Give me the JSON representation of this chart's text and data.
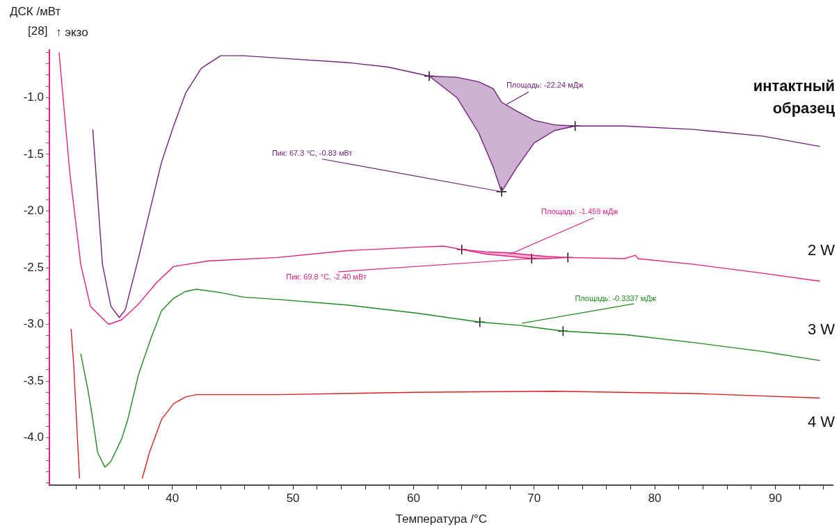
{
  "chart_data": {
    "type": "line",
    "ylabel": "ДСК /мВт",
    "xlabel": "Температура /°C",
    "annotations": [
      "[28]",
      "↑ экзо",
      {
        "text": "Площадь: -22.24 мДж",
        "x": 67.7,
        "y": -1.06
      },
      {
        "text": "Пик: 67.3 °C, -0.83 мВт",
        "x": 67.3,
        "y": -1.83
      },
      {
        "text": "Площадь: -1.459 мДж",
        "x": 68.0,
        "y": -2.38
      },
      {
        "text": "Пик: 69.8 °C, -2.40 мВт",
        "x": 69.8,
        "y": -2.42
      },
      {
        "text": "Площадь: -0.3337 мДж",
        "x": 69.0,
        "y": -2.99
      }
    ],
    "xlim": [
      29.8,
      94.8
    ],
    "ylim": [
      -4.42,
      -0.58
    ],
    "xticks": [
      {
        "value": 32,
        "label": null
      },
      {
        "value": 34,
        "label": null
      },
      {
        "value": 36,
        "label": null
      },
      {
        "value": 38,
        "label": null
      },
      40,
      {
        "value": 42,
        "label": null
      },
      {
        "value": 44,
        "label": null
      },
      {
        "value": 46,
        "label": null
      },
      {
        "value": 48,
        "label": null
      },
      50,
      {
        "value": 52,
        "label": null
      },
      {
        "value": 54,
        "label": null
      },
      {
        "value": 56,
        "label": null
      },
      {
        "value": 58,
        "label": null
      },
      60,
      {
        "value": 62,
        "label": null
      },
      {
        "value": 64,
        "label": null
      },
      {
        "value": 66,
        "label": null
      },
      {
        "value": 68,
        "label": null
      },
      70,
      {
        "value": 72,
        "label": null
      },
      {
        "value": 74,
        "label": null
      },
      {
        "value": 76,
        "label": null
      },
      {
        "value": 78,
        "label": null
      },
      80,
      {
        "value": 82,
        "label": null
      },
      {
        "value": 84,
        "label": null
      },
      {
        "value": 86,
        "label": null
      },
      {
        "value": 88,
        "label": null
      },
      90,
      {
        "value": 92,
        "label": null
      },
      {
        "value": 94,
        "label": null
      }
    ],
    "yticks": [
      {
        "value": -4.4,
        "label": null
      },
      {
        "value": -4.3,
        "label": null
      },
      {
        "value": -4.2,
        "label": null
      },
      {
        "value": -4.1,
        "label": null
      },
      {
        "value": -4,
        "label": "-4.0"
      },
      {
        "value": -3.9,
        "label": null
      },
      {
        "value": -3.8,
        "label": null
      },
      {
        "value": -3.7,
        "label": null
      },
      {
        "value": -3.6,
        "label": null
      },
      {
        "value": -3.5,
        "label": "-3.5"
      },
      {
        "value": -3.4,
        "label": null
      },
      {
        "value": -3.3,
        "label": null
      },
      {
        "value": -3.2,
        "label": null
      },
      {
        "value": -3.1,
        "label": null
      },
      {
        "value": -3,
        "label": "-3.0"
      },
      {
        "value": -2.9,
        "label": null
      },
      {
        "value": -2.8,
        "label": null
      },
      {
        "value": -2.7,
        "label": null
      },
      {
        "value": -2.6,
        "label": null
      },
      {
        "value": -2.5,
        "label": "-2.5"
      },
      {
        "value": -2.4,
        "label": null
      },
      {
        "value": -2.3,
        "label": null
      },
      {
        "value": -2.2,
        "label": null
      },
      {
        "value": -2.1,
        "label": null
      },
      {
        "value": -2,
        "label": "-2.0"
      },
      {
        "value": -1.9,
        "label": null
      },
      {
        "value": -1.8,
        "label": null
      },
      {
        "value": -1.7,
        "label": null
      },
      {
        "value": -1.6,
        "label": null
      },
      {
        "value": -1.5,
        "label": "-1.5"
      },
      {
        "value": -1.4,
        "label": null
      },
      {
        "value": -1.3,
        "label": null
      },
      {
        "value": -1.2,
        "label": null
      },
      {
        "value": -1.1,
        "label": null
      },
      {
        "value": -1,
        "label": "-1.0"
      },
      {
        "value": -0.9,
        "label": null
      },
      {
        "value": -0.8,
        "label": null
      },
      {
        "value": -0.7,
        "label": null
      },
      {
        "value": -0.6,
        "label": null
      }
    ],
    "grid": false,
    "legend": false,
    "series": [
      {
        "name": "интактный образец",
        "color": "#70207a",
        "x": [
          33.4,
          34.2,
          34.9,
          35.6,
          36.1,
          37.2,
          38.1,
          39.1,
          40.1,
          41.1,
          42.4,
          44.0,
          45.9,
          48.7,
          54.5,
          57.9,
          61.3,
          63.6,
          65.4,
          66.6,
          67.3,
          68.6,
          70.0,
          71.7,
          73.4,
          77.5,
          83.2,
          89.0,
          93.7
        ],
        "values": [
          -1.28,
          -2.47,
          -2.84,
          -2.94,
          -2.87,
          -2.41,
          -2.01,
          -1.57,
          -1.25,
          -0.96,
          -0.74,
          -0.63,
          -0.63,
          -0.65,
          -0.69,
          -0.73,
          -0.81,
          -1.0,
          -1.31,
          -1.61,
          -1.83,
          -1.61,
          -1.4,
          -1.29,
          -1.25,
          -1.25,
          -1.28,
          -1.34,
          -1.43
        ],
        "upper": [
          null,
          null,
          null,
          null,
          null,
          null,
          null,
          null,
          null,
          null,
          null,
          null,
          null,
          null,
          null,
          null,
          -0.81,
          -0.82,
          -0.86,
          -0.92,
          -1.04,
          -1.12,
          -1.2,
          -1.24,
          -1.25,
          null,
          null,
          null,
          null
        ],
        "lower": [
          null,
          null,
          null,
          null,
          null,
          null,
          null,
          null,
          null,
          null,
          null,
          null,
          null,
          null,
          null,
          null,
          -0.81,
          -1.0,
          -1.31,
          -1.61,
          -1.83,
          -1.61,
          -1.4,
          -1.29,
          -1.25,
          null,
          null,
          null,
          null
        ]
      },
      {
        "name": "2 W",
        "color": "#e0207f",
        "x": [
          30.6,
          31.5,
          32.4,
          33.2,
          34.7,
          35.8,
          37.2,
          38.7,
          40.1,
          43.0,
          48.7,
          54.5,
          60.2,
          62.5,
          64.0,
          66.0,
          68.0,
          69.8,
          71.0,
          72.8,
          77.5,
          78.4,
          78.6,
          83.2,
          89.0,
          93.7
        ],
        "values": [
          -0.6,
          -1.67,
          -2.47,
          -2.84,
          -3.0,
          -2.96,
          -2.82,
          -2.63,
          -2.49,
          -2.44,
          -2.41,
          -2.35,
          -2.32,
          -2.31,
          -2.34,
          -2.38,
          -2.4,
          -2.42,
          -2.42,
          -2.41,
          -2.42,
          -2.39,
          -2.42,
          -2.47,
          -2.55,
          -2.62
        ],
        "upper": [
          null,
          null,
          null,
          null,
          null,
          null,
          null,
          null,
          null,
          null,
          null,
          null,
          null,
          null,
          -2.34,
          -2.36,
          -2.37,
          -2.39,
          -2.4,
          -2.41,
          null,
          null,
          null,
          null,
          null,
          null
        ],
        "lower": [
          null,
          null,
          null,
          null,
          null,
          null,
          null,
          null,
          null,
          null,
          null,
          null,
          null,
          null,
          -2.34,
          -2.38,
          -2.4,
          -2.42,
          -2.42,
          -2.41,
          null,
          null,
          null,
          null,
          null,
          null
        ]
      },
      {
        "name": "3 W",
        "color": "#1a8a1a",
        "x": [
          32.4,
          33.0,
          33.4,
          33.8,
          34.4,
          34.9,
          35.8,
          36.3,
          37.2,
          38.2,
          39.1,
          40.1,
          41.1,
          42.0,
          44.0,
          45.9,
          48.7,
          54.5,
          60.2,
          65.5,
          68.9,
          72.4,
          77.5,
          83.2,
          89.0,
          93.7
        ],
        "values": [
          -3.26,
          -3.58,
          -3.84,
          -4.13,
          -4.26,
          -4.21,
          -4.01,
          -3.84,
          -3.44,
          -3.13,
          -2.88,
          -2.77,
          -2.71,
          -2.69,
          -2.72,
          -2.76,
          -2.78,
          -2.83,
          -2.9,
          -2.98,
          -3.01,
          -3.06,
          -3.09,
          -3.16,
          -3.24,
          -3.32
        ]
      },
      {
        "name": "4 W",
        "color": "#d82020",
        "x": [
          31.6,
          31.8,
          32.3,
          35.0,
          37.5,
          38.1,
          39.1,
          40.1,
          41.1,
          42.0,
          48.7,
          60.2,
          71.7,
          83.2,
          93.7
        ],
        "values": [
          -3.04,
          -3.33,
          -4.36,
          null,
          -4.36,
          -4.13,
          -3.84,
          -3.7,
          -3.64,
          -3.62,
          -3.62,
          -3.6,
          -3.59,
          -3.61,
          -3.65
        ]
      },
      {
        "type": "line",
        "color": "#70207a",
        "x": [
          61.3,
          63.6,
          65.4,
          66.6,
          67.3,
          68.6,
          70.0,
          71.7,
          73.4
        ],
        "values": [
          -0.81,
          -0.82,
          -0.86,
          -0.92,
          -1.04,
          -1.12,
          -1.2,
          -1.24,
          -1.25
        ]
      },
      {
        "type": "line",
        "color": "#e0207f",
        "x": [
          64.0,
          66.0,
          68.0,
          69.8,
          71.0,
          72.8
        ],
        "values": [
          -2.34,
          -2.36,
          -2.37,
          -2.39,
          -2.4,
          -2.41
        ]
      },
      {
        "type": "scatter",
        "marker": "cross",
        "color": "#000000",
        "x": [
          61.3,
          67.3,
          73.4
        ],
        "values": [
          -0.81,
          -1.83,
          -1.25
        ]
      },
      {
        "type": "scatter",
        "marker": "cross",
        "color": "#000000",
        "x": [
          64.0,
          69.8,
          72.8
        ],
        "values": [
          -2.34,
          -2.42,
          -2.41
        ]
      },
      {
        "type": "scatter",
        "marker": "cross",
        "color": "#000000",
        "x": [
          65.5,
          72.4
        ],
        "values": [
          -2.98,
          -3.06
        ]
      }
    ]
  }
}
